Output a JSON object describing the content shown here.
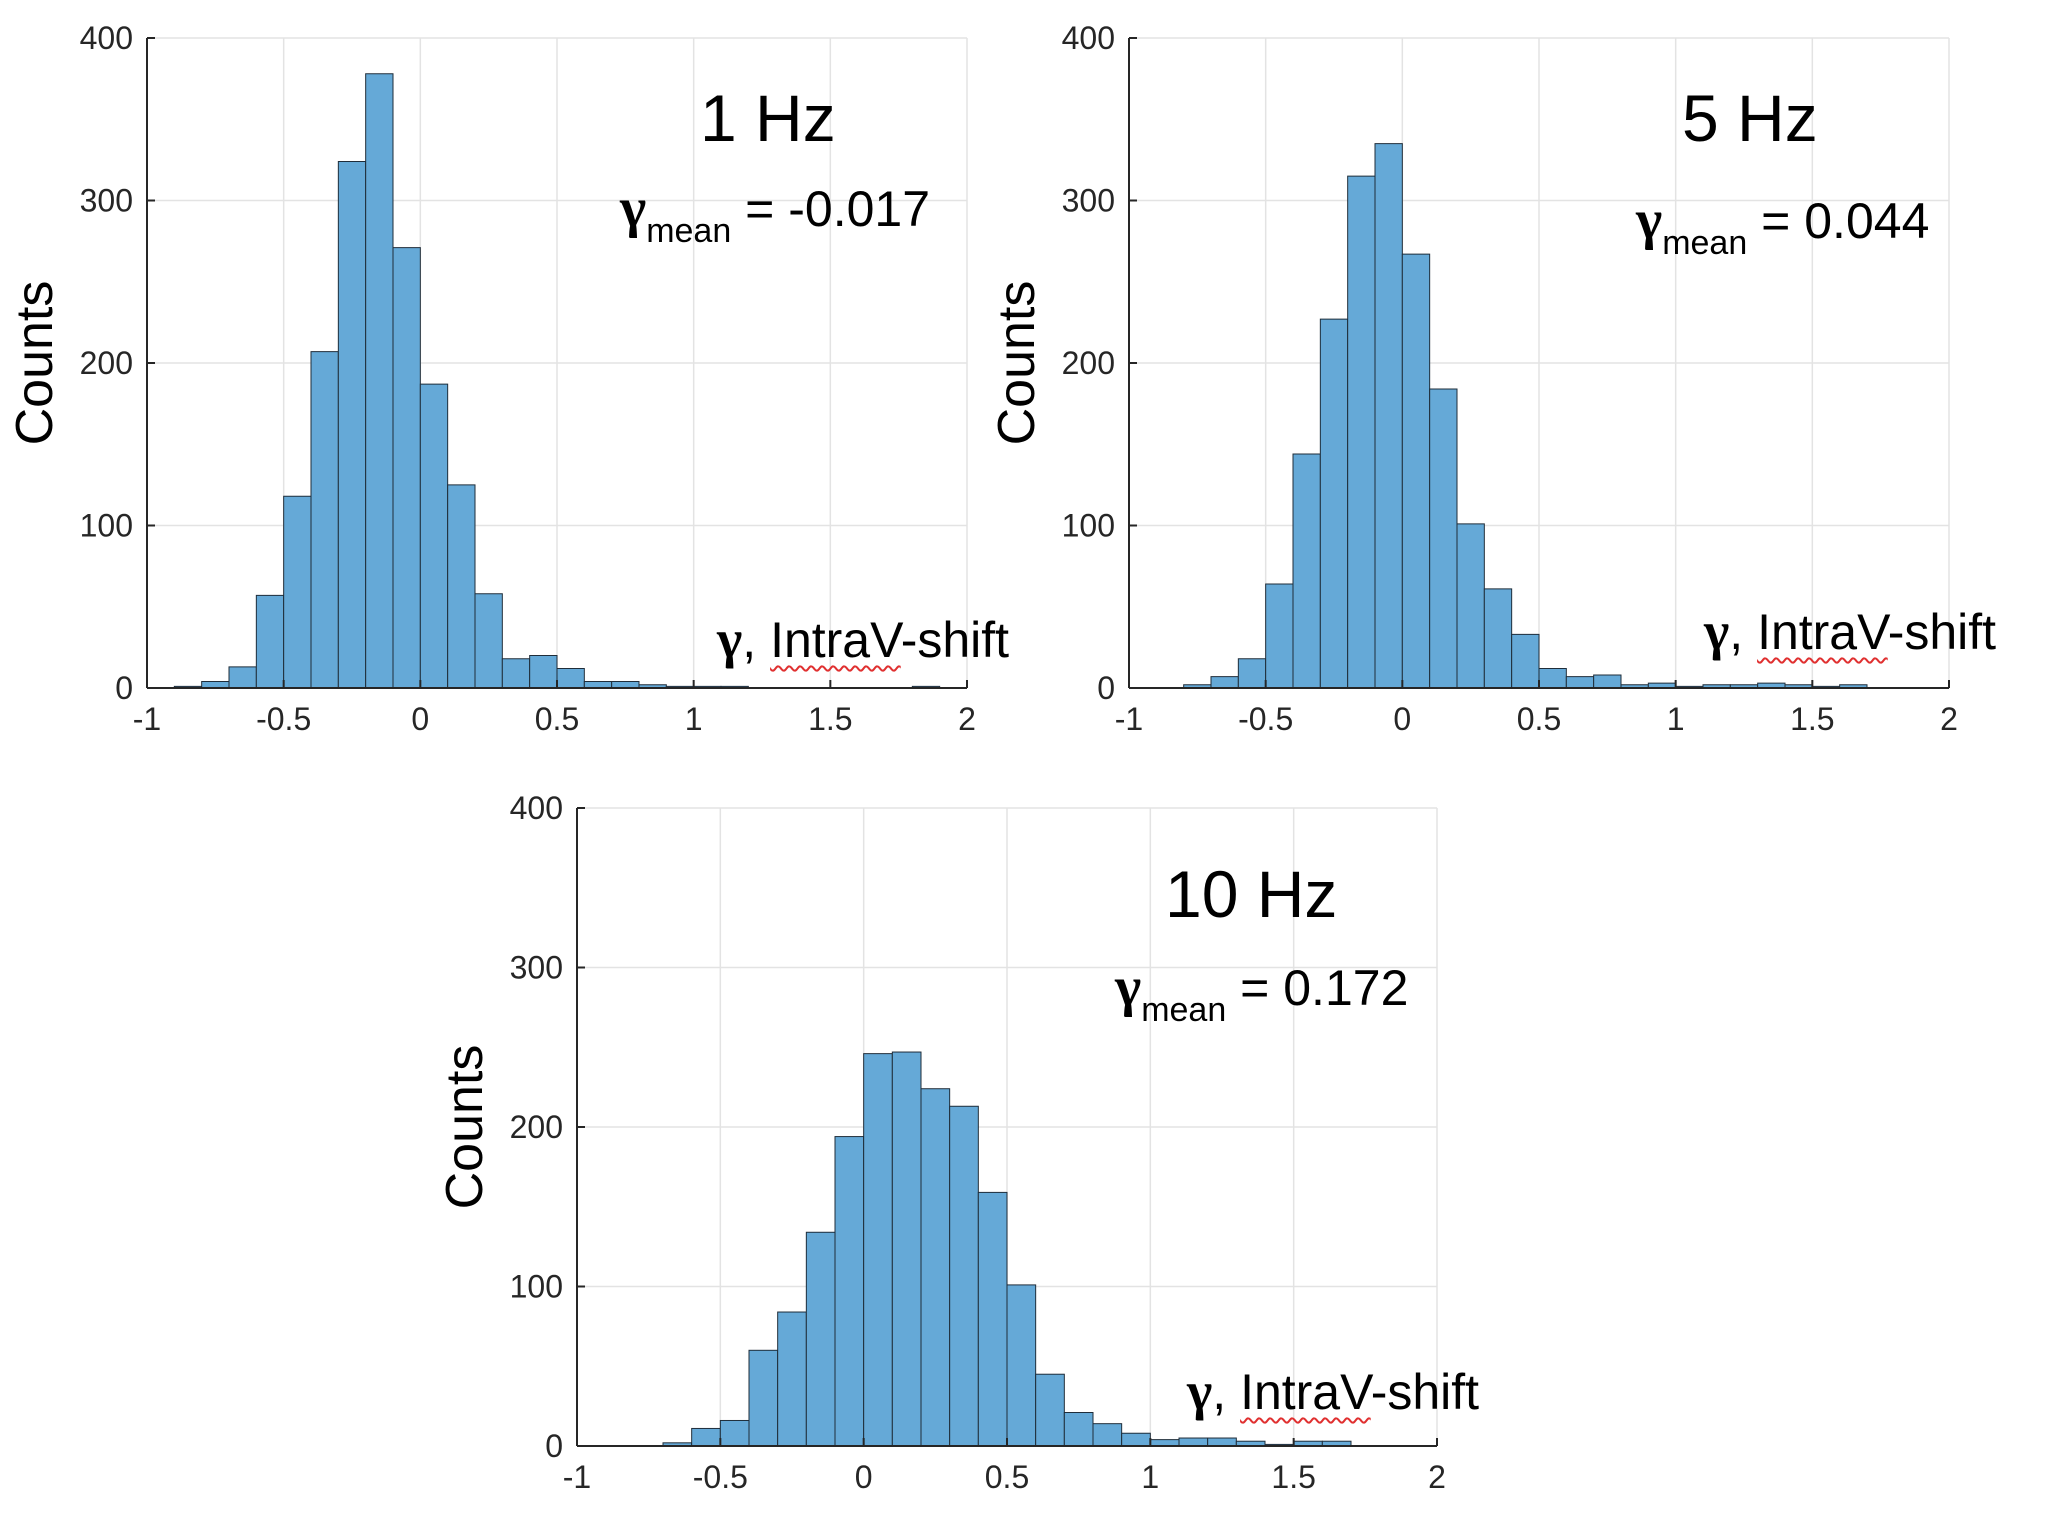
{
  "chart_data": [
    {
      "type": "bar",
      "title": "1 Hz",
      "annotation": {
        "symbol": "γ",
        "subscript": "mean",
        "text": " = -0.017"
      },
      "xname": {
        "symbol": "γ",
        "prefix": ", ",
        "underlined": "IntraV",
        "suffix": "-shift"
      },
      "ylabel": "Counts",
      "xlim": [
        -1,
        2
      ],
      "ylim": [
        0,
        400
      ],
      "xticks": [
        "-1",
        "-0.5",
        "0",
        "0.5",
        "1",
        "1.5",
        "2"
      ],
      "yticks": [
        "0",
        "100",
        "200",
        "300",
        "400"
      ],
      "grid": true,
      "bin_edges_start": -0.9,
      "bin_width": 0.1,
      "values": [
        1,
        4,
        13,
        57,
        118,
        207,
        324,
        378,
        271,
        187,
        125,
        58,
        18,
        20,
        12,
        4,
        4,
        2,
        1,
        1,
        1,
        0,
        0,
        0,
        0,
        0,
        0,
        1
      ]
    },
    {
      "type": "bar",
      "title": "5 Hz",
      "annotation": {
        "symbol": "γ",
        "subscript": "mean",
        "text": " = 0.044"
      },
      "xname": {
        "symbol": "γ",
        "prefix": ", ",
        "underlined": "IntraV",
        "suffix": "-shift"
      },
      "ylabel": "Counts",
      "xlim": [
        -1,
        2
      ],
      "ylim": [
        0,
        400
      ],
      "xticks": [
        "-1",
        "-0.5",
        "0",
        "0.5",
        "1",
        "1.5",
        "2"
      ],
      "yticks": [
        "0",
        "100",
        "200",
        "300",
        "400"
      ],
      "grid": true,
      "bin_edges_start": -0.8,
      "bin_width": 0.1,
      "values": [
        2,
        7,
        18,
        64,
        144,
        227,
        315,
        335,
        267,
        184,
        101,
        61,
        33,
        12,
        7,
        8,
        2,
        3,
        1,
        2,
        2,
        3,
        2,
        1,
        2
      ]
    },
    {
      "type": "bar",
      "title": "10 Hz",
      "annotation": {
        "symbol": "γ",
        "subscript": "mean",
        "text": " = 0.172"
      },
      "xname": {
        "symbol": "γ",
        "prefix": ", ",
        "underlined": "IntraV",
        "suffix": "-shift"
      },
      "ylabel": "Counts",
      "xlim": [
        -1,
        2
      ],
      "ylim": [
        0,
        400
      ],
      "xticks": [
        "-1",
        "-0.5",
        "0",
        "0.5",
        "1",
        "1.5",
        "2"
      ],
      "yticks": [
        "0",
        "100",
        "200",
        "300",
        "400"
      ],
      "grid": true,
      "bin_edges_start": -0.7,
      "bin_width": 0.1,
      "values": [
        2,
        11,
        16,
        60,
        84,
        134,
        194,
        246,
        247,
        224,
        213,
        159,
        101,
        45,
        21,
        14,
        8,
        4,
        5,
        5,
        3,
        1,
        3,
        3
      ]
    }
  ],
  "style": {
    "bar_fill": "#65a9d7",
    "bar_edge": "#1f2d3a",
    "grid": "#e3e3e3",
    "axis": "#262626"
  }
}
